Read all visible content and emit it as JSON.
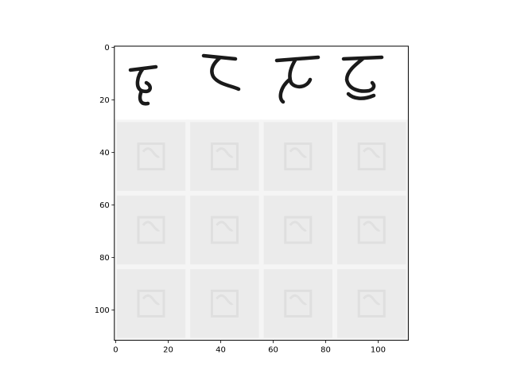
{
  "chart_data": {
    "type": "heatmap",
    "colormap": "gray_r",
    "grid": false,
    "xlim": [
      -0.5,
      111.5
    ],
    "ylim": [
      111.5,
      -0.5
    ],
    "x_ticks": [
      0,
      20,
      40,
      60,
      80,
      100
    ],
    "y_ticks": [
      0,
      20,
      40,
      60,
      80,
      100
    ],
    "x_tick_labels": [
      "0",
      "20",
      "40",
      "60",
      "80",
      "100"
    ],
    "y_tick_labels": [
      "0",
      "20",
      "40",
      "60",
      "80",
      "100"
    ],
    "tile_size": 28,
    "grid_shape": [
      4,
      4
    ],
    "rows": [
      {
        "row": 0,
        "content": "handwritten characters",
        "background_level": 0.0
      },
      {
        "row": 1,
        "content": "faint generated patterns",
        "background_level": 0.1
      },
      {
        "row": 2,
        "content": "faint generated patterns",
        "background_level": 0.1
      },
      {
        "row": 3,
        "content": "faint generated patterns",
        "background_level": 0.1
      }
    ]
  },
  "colors": {
    "background": "#ffffff",
    "ink": "#1a1a1a",
    "tile_base": "#ebebeb",
    "tile_separator": "#f5f5f5",
    "faint_ink": "#d6d6d6"
  }
}
